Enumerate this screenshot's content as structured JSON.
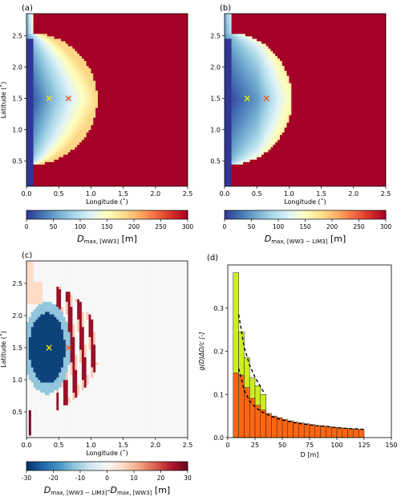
{
  "chart_data": [
    {
      "panel_label": "(a)",
      "type": "heatmap",
      "xlabel": "Longitude (˚)",
      "ylabel": "Latitude (˚)",
      "xlim": [
        0,
        2.5
      ],
      "ylim": [
        0.1,
        2.85
      ],
      "xticks": [
        "0.0",
        "0.5",
        "1.0",
        "1.5",
        "2.0",
        "2.5"
      ],
      "yticks": [
        "0.5",
        "1.0",
        "1.5",
        "2.0",
        "2.5"
      ],
      "colorbar": {
        "label_main": "D",
        "label_sub": "max, [WW3]",
        "label_unit": " [m]",
        "ticks": [
          "0",
          "50",
          "100",
          "150",
          "200",
          "250",
          "300"
        ],
        "range": [
          0,
          300
        ],
        "colormap": "RdYlBu_r"
      },
      "markers": [
        {
          "x": 0.35,
          "y": 1.5,
          "symbol": "×",
          "color": "#e8e800"
        },
        {
          "x": 0.65,
          "y": 1.5,
          "symbol": "×",
          "color": "#e85a20"
        }
      ]
    },
    {
      "panel_label": "(b)",
      "type": "heatmap",
      "xlabel": "Longitude (˚)",
      "ylabel": "",
      "xlim": [
        0,
        2.5
      ],
      "ylim": [
        0.1,
        2.85
      ],
      "xticks": [
        "0.0",
        "0.5",
        "1.0",
        "1.5",
        "2.0",
        "2.5"
      ],
      "yticks": [
        "0.5",
        "1.0",
        "1.5",
        "2.0",
        "2.5"
      ],
      "colorbar": {
        "label_main": "D",
        "label_sub": "max, [WW3 − LIM3]",
        "label_unit": " [m]",
        "ticks": [
          "0",
          "50",
          "100",
          "150",
          "200",
          "250",
          "300"
        ],
        "range": [
          0,
          300
        ],
        "colormap": "RdYlBu_r"
      },
      "markers": [
        {
          "x": 0.35,
          "y": 1.5,
          "symbol": "×",
          "color": "#e8e800"
        },
        {
          "x": 0.65,
          "y": 1.5,
          "symbol": "×",
          "color": "#e85a20"
        }
      ]
    },
    {
      "panel_label": "(c)",
      "type": "heatmap",
      "xlabel": "Longitude (˚)",
      "ylabel": "Latitude (˚)",
      "xlim": [
        0,
        2.5
      ],
      "ylim": [
        0.1,
        2.85
      ],
      "xticks": [
        "0.0",
        "0.5",
        "1.0",
        "1.5",
        "2.0",
        "2.5"
      ],
      "yticks": [
        "0.5",
        "1.0",
        "1.5",
        "2.0",
        "2.5"
      ],
      "colorbar": {
        "label_main": "D",
        "label_sub": "max, [WW3 − LIM3]",
        "label_mid": "-D",
        "label_sub2": "max, [WW3]",
        "label_unit": " [m]",
        "ticks": [
          "-30",
          "-20",
          "-10",
          "0",
          "10",
          "20",
          "30"
        ],
        "range": [
          -30,
          30
        ],
        "colormap": "RdBu_r"
      },
      "markers": [
        {
          "x": 0.35,
          "y": 1.5,
          "symbol": "×",
          "color": "#e8e800"
        },
        {
          "x": 0.65,
          "y": 1.5,
          "symbol": "×",
          "color": "#e85a20"
        }
      ]
    },
    {
      "panel_label": "(d)",
      "type": "bar",
      "xlabel": "D [m]",
      "ylabel": "g(D)ΔD/c   [-]",
      "xlim": [
        0,
        150
      ],
      "ylim": [
        0,
        0.4
      ],
      "xticks": [
        "0",
        "25",
        "50",
        "75",
        "100",
        "125",
        "150"
      ],
      "yticks": [
        "0.0",
        "0.1",
        "0.2",
        "0.3"
      ],
      "bin_width": 5,
      "series": [
        {
          "color": "#ccee22",
          "bin_starts": [
            5,
            10,
            15,
            20,
            25,
            30
          ],
          "values": [
            0.382,
            0.245,
            0.185,
            0.138,
            0.12,
            0.1
          ]
        },
        {
          "color": "#ff6611",
          "bin_starts": [
            5,
            10,
            15,
            20,
            25,
            30,
            35,
            40,
            45,
            50,
            55,
            60,
            65,
            70,
            75,
            80,
            85,
            90,
            95,
            100,
            105,
            110,
            115,
            120
          ],
          "values": [
            0.15,
            0.145,
            0.116,
            0.091,
            0.075,
            0.064,
            0.056,
            0.05,
            0.046,
            0.042,
            0.039,
            0.036,
            0.034,
            0.032,
            0.03,
            0.028,
            0.027,
            0.025,
            0.024,
            0.023,
            0.022,
            0.021,
            0.02,
            0.019
          ]
        }
      ],
      "fit_curves": [
        {
          "style": "dashed",
          "x": [
            10,
            15,
            20,
            25,
            30,
            33
          ],
          "y": [
            0.285,
            0.21,
            0.168,
            0.14,
            0.118,
            0.105
          ]
        },
        {
          "style": "dashed",
          "x": [
            10,
            15,
            20,
            25,
            30,
            40,
            50,
            60,
            70,
            80,
            90,
            100,
            110,
            120,
            125
          ],
          "y": [
            0.16,
            0.11,
            0.085,
            0.071,
            0.061,
            0.049,
            0.041,
            0.035,
            0.031,
            0.028,
            0.026,
            0.023,
            0.021,
            0.02,
            0.019
          ]
        }
      ]
    }
  ]
}
